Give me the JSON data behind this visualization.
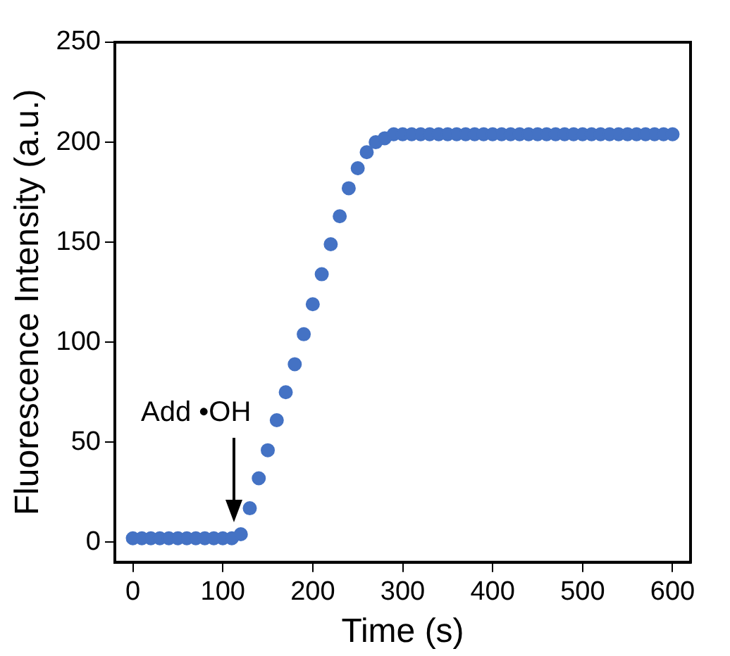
{
  "chart_data": {
    "type": "scatter",
    "xlabel": "Time (s)",
    "ylabel": "Fluorescence Intensity (a.u.)",
    "x": [
      0,
      10,
      20,
      30,
      40,
      50,
      60,
      70,
      80,
      90,
      100,
      110,
      120,
      130,
      140,
      150,
      160,
      170,
      180,
      190,
      200,
      210,
      220,
      230,
      240,
      250,
      260,
      270,
      280,
      290,
      300,
      310,
      320,
      330,
      340,
      350,
      360,
      370,
      380,
      390,
      400,
      410,
      420,
      430,
      440,
      450,
      460,
      470,
      480,
      490,
      500,
      510,
      520,
      530,
      540,
      550,
      560,
      570,
      580,
      590,
      600
    ],
    "series": [
      {
        "color": "#4472c4",
        "values": [
          2,
          2,
          2,
          2,
          2,
          2,
          2,
          2,
          2,
          2,
          2,
          2,
          4,
          17,
          32,
          46,
          61,
          75,
          89,
          104,
          119,
          134,
          149,
          163,
          177,
          187,
          195,
          200,
          202,
          204,
          204,
          204,
          204,
          204,
          204,
          204,
          204,
          204,
          204,
          204,
          204,
          204,
          204,
          204,
          204,
          204,
          204,
          204,
          204,
          204,
          204,
          204,
          204,
          204,
          204,
          204,
          204,
          204,
          204,
          204,
          204
        ]
      }
    ],
    "marker": "circle",
    "grid": false,
    "legend": false,
    "xlim": [
      -20,
      620
    ],
    "xticks": [
      0,
      100,
      200,
      300,
      400,
      500,
      600
    ],
    "ylim": [
      -10,
      250
    ],
    "yticks": [
      0,
      50,
      100,
      150,
      200,
      250
    ],
    "annotations": [
      "Add •OH"
    ]
  }
}
